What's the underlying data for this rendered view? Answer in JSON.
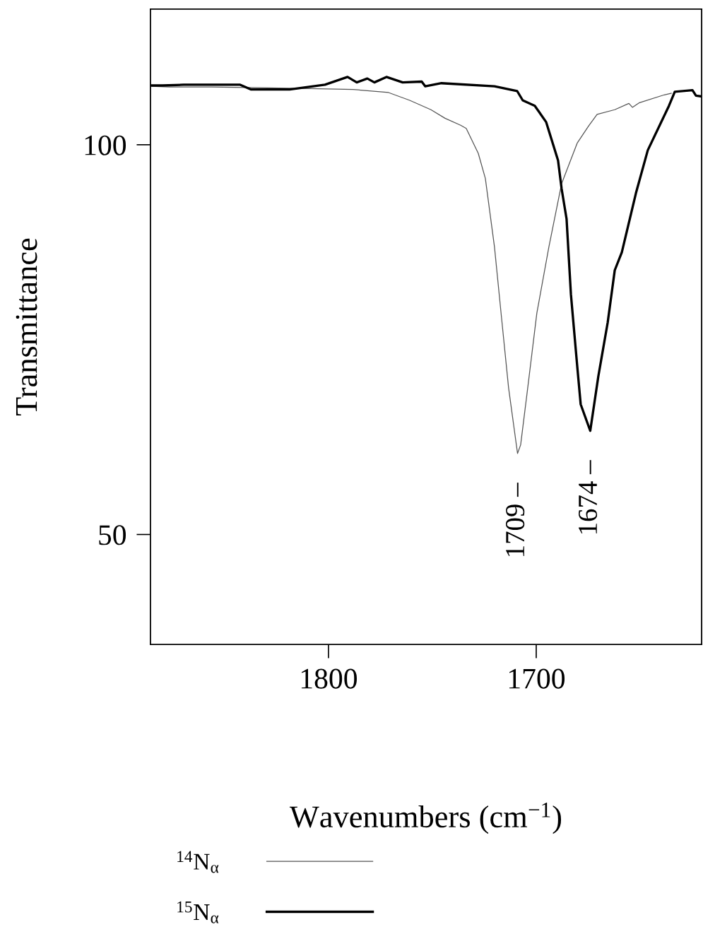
{
  "chart_data": {
    "type": "line",
    "xlabel": "Wavenumbers (cm$^{−1}$)",
    "ylabel": "Transmittance",
    "xlim": [
      1885.7,
      1620.4
    ],
    "ylim": [
      35.9,
      117.4
    ],
    "xticks": [
      1800,
      1700
    ],
    "yticks": [
      100,
      50
    ],
    "grid": false,
    "legend": "bottom",
    "marker": "none",
    "line_style": "solid",
    "series": [
      {
        "name": "$^{14}$N$_{α}$",
        "color": "#555555",
        "x": [
          1885,
          1876.5,
          1856.1,
          1828.9,
          1808.5,
          1788.1,
          1771.1,
          1760.9,
          1750.7,
          1743.9,
          1736.4,
          1733.7,
          1727.9,
          1724.5,
          1720.1,
          1716.7,
          1713.3,
          1709,
          1707.5,
          1704.1,
          1699.7,
          1693.9,
          1687.8,
          1680.3,
          1674.8,
          1670.7,
          1662.2,
          1655.4,
          1653.7,
          1650.3,
          1638.4,
          1635.0
        ],
        "values": [
          107.5,
          107.4,
          107.4,
          107.3,
          107.2,
          107.1,
          106.7,
          105.7,
          104.5,
          103.4,
          102.5,
          102.1,
          98.9,
          95.7,
          86.9,
          77.8,
          68.8,
          60.4,
          61.5,
          68.8,
          78.4,
          86.9,
          95.0,
          100.2,
          102.4,
          103.9,
          104.5,
          105.3,
          104.8,
          105.4,
          106.4,
          106.6
        ]
      },
      {
        "name": "$^{15}$N$_{α}$",
        "color": "#000000",
        "x": [
          1885,
          1879.9,
          1869.7,
          1842.5,
          1837.4,
          1818.7,
          1801.7,
          1790.8,
          1786.4,
          1781.3,
          1777.9,
          1772.1,
          1764.3,
          1755.1,
          1753.4,
          1745.6,
          1720.1,
          1709.2,
          1706.5,
          1700.7,
          1695.2,
          1689.5,
          1687.8,
          1685.4,
          1683.3,
          1680.3,
          1678.6,
          1674,
          1670.1,
          1665.6,
          1662.2,
          1658.8,
          1652.0,
          1646.3,
          1636.1,
          1633.3,
          1624.8,
          1623.1,
          1620.4
        ],
        "values": [
          107.6,
          107.6,
          107.7,
          107.7,
          107.1,
          107.1,
          107.7,
          108.7,
          108.0,
          108.5,
          108.0,
          108.7,
          108.0,
          108.1,
          107.5,
          107.9,
          107.5,
          106.9,
          105.7,
          105.0,
          102.9,
          98.0,
          94.4,
          90.5,
          80.8,
          71.7,
          66.7,
          63.3,
          70.3,
          77.2,
          83.9,
          86.2,
          93.8,
          99.3,
          105.0,
          106.8,
          107.0,
          106.3,
          106.2
        ]
      }
    ],
    "annotations": [
      "1709 –",
      "1674 –"
    ]
  }
}
